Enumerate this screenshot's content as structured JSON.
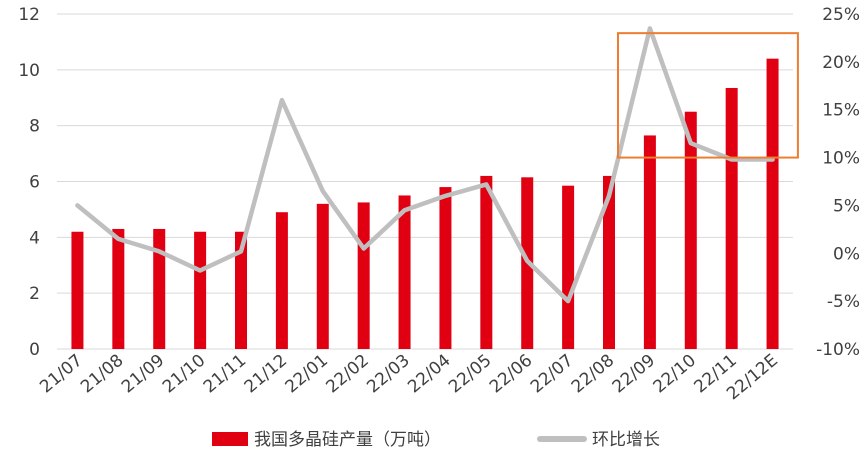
{
  "chart_data": {
    "type": "bar",
    "categories": [
      "21/07",
      "21/08",
      "21/09",
      "21/10",
      "21/11",
      "21/12",
      "22/01",
      "22/02",
      "22/03",
      "22/04",
      "22/05",
      "22/06",
      "22/07",
      "22/08",
      "22/09",
      "22/10",
      "22/11",
      "22/12E"
    ],
    "series": [
      {
        "name": "我国多晶硅产量（万吨）",
        "type": "bar",
        "axis": "left",
        "color": "#e00012",
        "values": [
          4.2,
          4.3,
          4.3,
          4.2,
          4.2,
          4.9,
          5.2,
          5.25,
          5.5,
          5.8,
          6.2,
          6.15,
          5.85,
          6.2,
          7.65,
          8.5,
          9.35,
          10.4
        ]
      },
      {
        "name": "环比增长",
        "type": "line",
        "axis": "right",
        "color": "#bfbfbf",
        "values": [
          5.0,
          1.5,
          0.2,
          -1.8,
          0.2,
          16.0,
          6.5,
          0.5,
          4.5,
          6.0,
          7.2,
          -0.8,
          -5.0,
          6.0,
          23.5,
          11.5,
          9.8,
          9.8
        ]
      }
    ],
    "y_left": {
      "min": 0,
      "max": 12,
      "ticks": [
        "0",
        "2",
        "4",
        "6",
        "8",
        "10",
        "12"
      ]
    },
    "y_right": {
      "min": -10,
      "max": 25,
      "ticks": [
        "-10%",
        "-5%",
        "0%",
        "5%",
        "10%",
        "15%",
        "20%",
        "25%"
      ]
    },
    "grid": true,
    "legend": "bottom",
    "highlight": {
      "from_category": "22/09",
      "to_category": "22/12E",
      "right_from": 10,
      "right_to": 23,
      "color": "#ed7d31"
    }
  }
}
